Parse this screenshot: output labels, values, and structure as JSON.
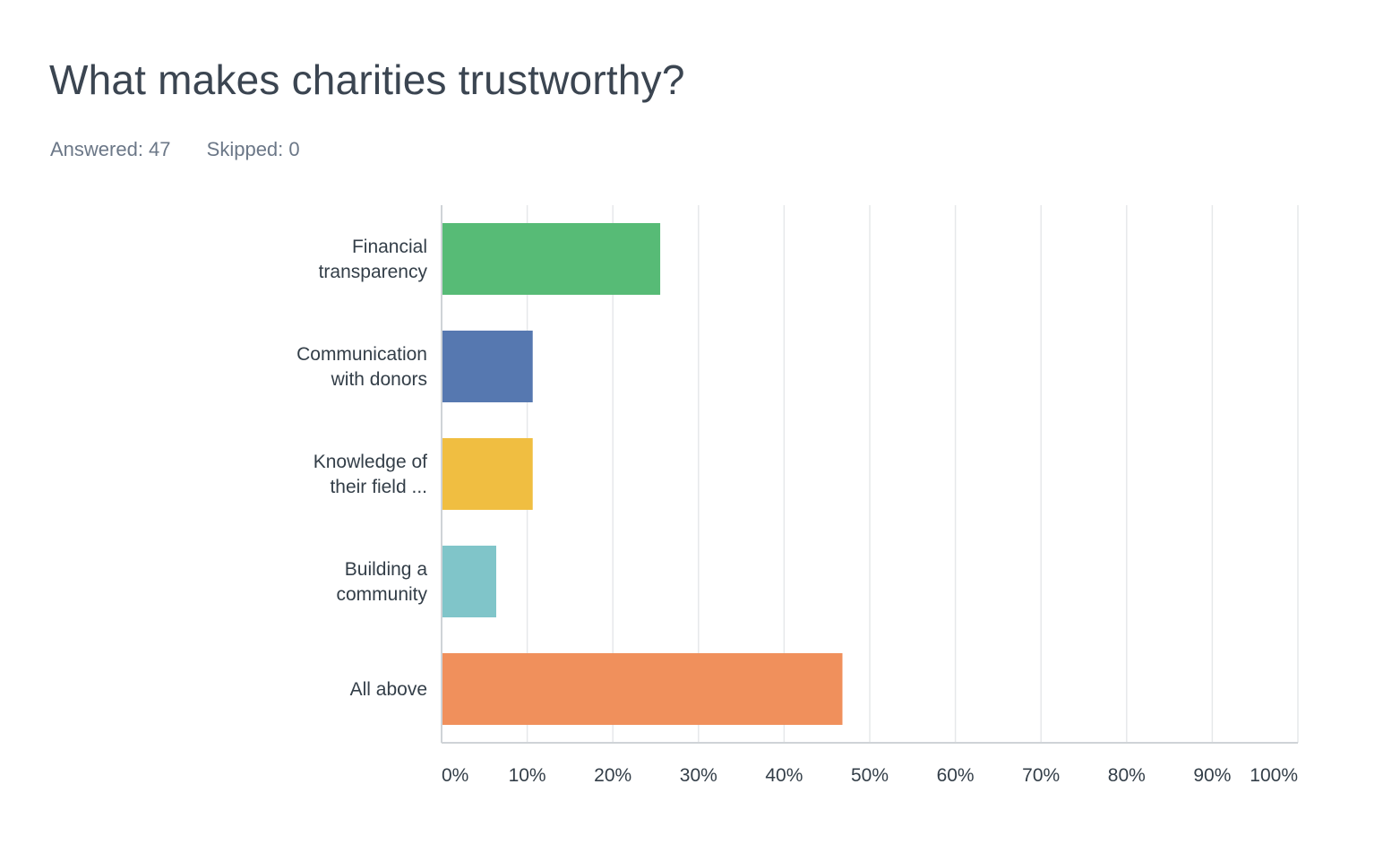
{
  "question": {
    "title": "What makes charities trustworthy?",
    "answered": "Answered: 47",
    "skipped": "Skipped: 0"
  },
  "chart_data": {
    "type": "bar",
    "orientation": "horizontal",
    "title": "What makes charities trustworthy?",
    "categories": [
      [
        "Financial",
        "transparency"
      ],
      [
        "Communication",
        "with donors"
      ],
      [
        "Knowledge of",
        "their field ..."
      ],
      [
        "Building a",
        "community"
      ],
      [
        "All above"
      ]
    ],
    "values": [
      25.53,
      10.64,
      10.64,
      6.38,
      46.81
    ],
    "colors": [
      "#57bb76",
      "#5678b0",
      "#f0be41",
      "#80c5c9",
      "#f0905c"
    ],
    "xlim": [
      0,
      100
    ],
    "xticks": [
      "0%",
      "10%",
      "20%",
      "30%",
      "40%",
      "50%",
      "60%",
      "70%",
      "80%",
      "90%",
      "100%"
    ],
    "grid": true,
    "gridline_color": "#e6e8ea",
    "axis_color": "#cfd3d7",
    "legend": "none"
  }
}
